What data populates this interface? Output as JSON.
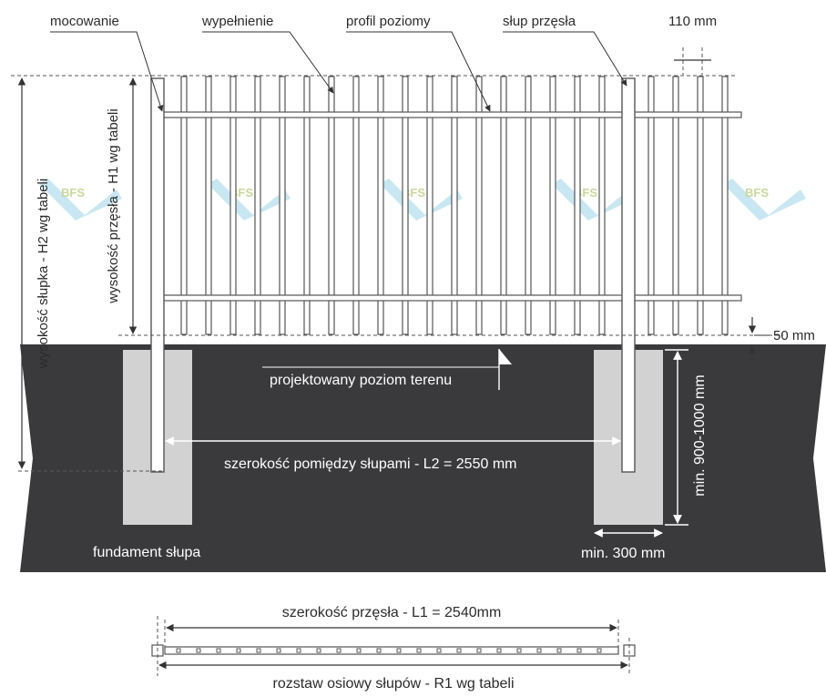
{
  "labels": {
    "mocowanie": "mocowanie",
    "wypelnienie": "wypełnienie",
    "profil_poziomy": "profil poziomy",
    "slup_przesla": "słup przęsła",
    "width_110": "110 mm",
    "h2": "wysokość słupka - H2 wg tabeli",
    "h1": "wysokość przęsła - H1 wg tabeli",
    "gap_50": "50 mm",
    "ground_level": "projektowany poziom terenu",
    "l2": "szerokość pomiędzy słupami - L2 = 2550 mm",
    "depth": "min. 900-1000 mm",
    "foundation": "fundament słupa",
    "min_300": "min. 300 mm",
    "l1": "szerokość przęsła - L1 = 2540mm",
    "r1": "rozstaw osiowy słupów - R1 wg tabeli"
  },
  "watermark": "BFS",
  "colors": {
    "ground": "#3a3a3c",
    "foundation": "#d2d2d2",
    "watermark_text": "#c9d89a",
    "watermark_shape": "#bfe3f0"
  }
}
